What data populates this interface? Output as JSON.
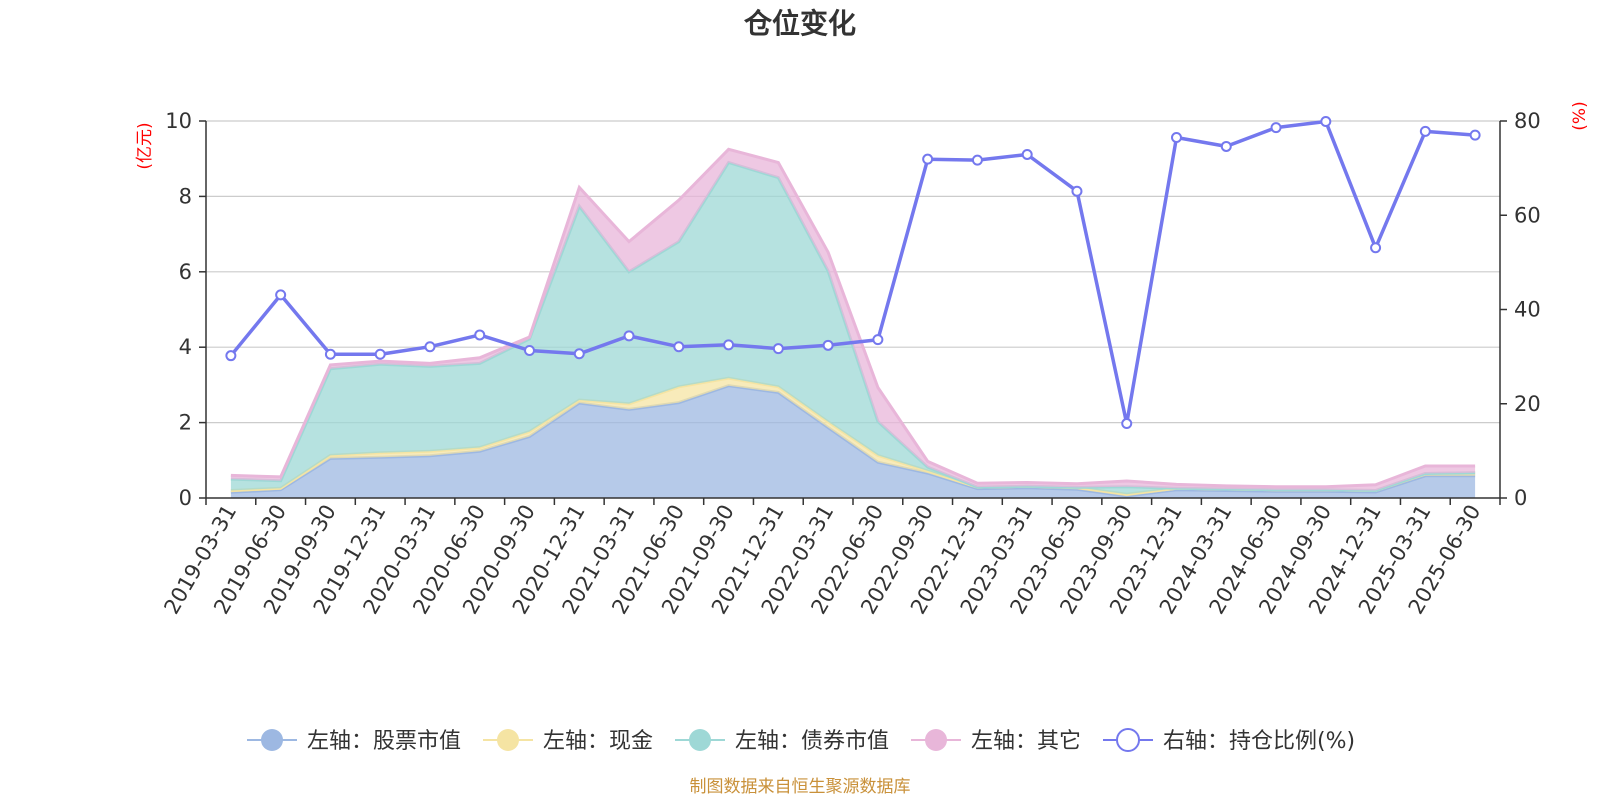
{
  "chart_data": {
    "type": "area",
    "title": "仓位变化",
    "source_note": "制图数据来自恒生聚源数据库",
    "left_axis": {
      "unit": "(亿元)",
      "min": 0,
      "max": 10,
      "ticks": [
        "0",
        "2",
        "4",
        "6",
        "8",
        "10"
      ]
    },
    "right_axis": {
      "unit": "(%)",
      "min": 0,
      "max": 80,
      "ticks": [
        "0",
        "20",
        "40",
        "60",
        "80"
      ]
    },
    "x_labels": [
      "2019-03-31",
      "2019-06-30",
      "2019-09-30",
      "2019-12-31",
      "2020-03-31",
      "2020-06-30",
      "2020-09-30",
      "2020-12-31",
      "2021-03-31",
      "2021-06-30",
      "2021-09-30",
      "2021-12-31",
      "2022-03-31",
      "2022-06-30",
      "2022-09-30",
      "2022-12-31",
      "2023-03-31",
      "2023-06-30",
      "2023-09-30",
      "2023-12-31",
      "2024-03-31",
      "2024-06-30",
      "2024-09-30",
      "2024-12-31",
      "2025-03-31",
      "2025-06-30"
    ],
    "stacked": true,
    "grid": true,
    "legend_position": "bottom",
    "series": [
      {
        "name": "左轴：股票市值",
        "axis": "left",
        "color": "#9db8e2",
        "values": [
          0.15,
          0.22,
          1.05,
          1.08,
          1.12,
          1.24,
          1.63,
          2.52,
          2.35,
          2.53,
          2.98,
          2.8,
          1.87,
          0.95,
          0.66,
          0.25,
          0.27,
          0.23,
          0.05,
          0.22,
          0.2,
          0.18,
          0.18,
          0.16,
          0.59,
          0.59
        ]
      },
      {
        "name": "左轴：现金",
        "axis": "left",
        "color": "#f5e4a3",
        "values": [
          0.05,
          0.04,
          0.08,
          0.12,
          0.12,
          0.1,
          0.13,
          0.08,
          0.15,
          0.42,
          0.2,
          0.15,
          0.15,
          0.18,
          0.06,
          0.04,
          0.04,
          0.05,
          0.05,
          0.04,
          0.04,
          0.04,
          0.04,
          0.04,
          0.06,
          0.08
        ]
      },
      {
        "name": "左轴：债券市值",
        "axis": "left",
        "color": "#9ed8d6",
        "values": [
          0.3,
          0.2,
          2.3,
          2.35,
          2.25,
          2.23,
          2.46,
          5.14,
          3.5,
          3.85,
          5.72,
          5.55,
          4.0,
          0.9,
          0.1,
          0.0,
          0.0,
          0.0,
          0.2,
          0.0,
          0.0,
          0.0,
          0.0,
          0.0,
          0.0,
          0.0
        ]
      },
      {
        "name": "左轴：其它",
        "axis": "left",
        "color": "#e8b6d9",
        "values": [
          0.1,
          0.1,
          0.1,
          0.08,
          0.08,
          0.15,
          0.05,
          0.5,
          0.8,
          1.1,
          0.35,
          0.4,
          0.5,
          0.9,
          0.15,
          0.1,
          0.1,
          0.1,
          0.15,
          0.1,
          0.08,
          0.08,
          0.08,
          0.15,
          0.2,
          0.18
        ]
      },
      {
        "name": "右轴：持仓比例(%)",
        "axis": "right",
        "color": "#7478ee",
        "values": [
          30.2,
          43.1,
          30.5,
          30.5,
          32.1,
          34.6,
          31.3,
          30.6,
          34.4,
          32.1,
          32.5,
          31.7,
          32.4,
          33.6,
          71.9,
          71.7,
          72.9,
          65.1,
          15.8,
          76.5,
          74.6,
          78.6,
          79.9,
          53.1,
          77.8,
          77.0
        ]
      }
    ]
  }
}
